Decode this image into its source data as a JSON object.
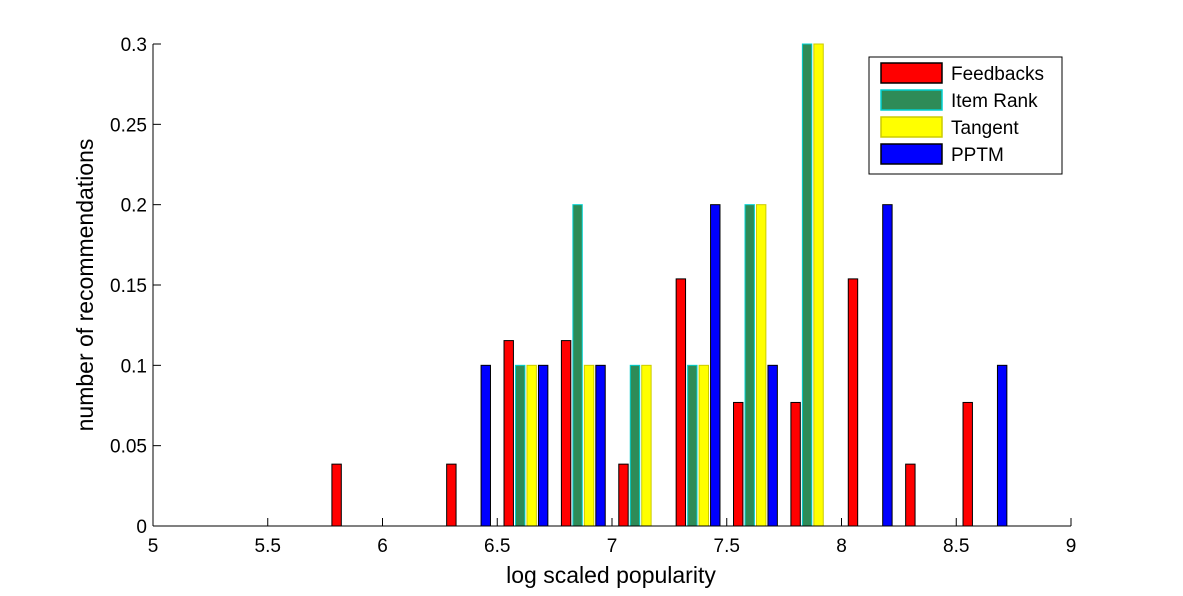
{
  "chart_data": {
    "type": "bar",
    "xlabel": "log scaled popularity",
    "ylabel": "number of recommendations",
    "xlim": [
      5,
      9
    ],
    "ylim": [
      0,
      0.3
    ],
    "xticks": [
      5,
      5.5,
      6,
      6.5,
      7,
      7.5,
      8,
      8.5,
      9
    ],
    "xtick_labels": [
      "5",
      "5.5",
      "6",
      "6.5",
      "7",
      "7.5",
      "8",
      "8.5",
      "9"
    ],
    "yticks": [
      0,
      0.05,
      0.1,
      0.15,
      0.2,
      0.25,
      0.3
    ],
    "ytick_labels": [
      "0",
      "0.05",
      "0.1",
      "0.15",
      "0.2",
      "0.25",
      "0.3"
    ],
    "grid": false,
    "legend_position": "top-right",
    "x": [
      5.125,
      5.375,
      5.625,
      5.875,
      6.125,
      6.375,
      6.625,
      6.875,
      7.125,
      7.375,
      7.625,
      7.875,
      8.125,
      8.375,
      8.625,
      8.875
    ],
    "series": [
      {
        "name": "Feedbacks",
        "color": "#ff0000",
        "edge": "#000000",
        "values": [
          0,
          0,
          0,
          0.0385,
          0,
          0.0385,
          0.1154,
          0.1154,
          0.0385,
          0.1538,
          0.0769,
          0.0769,
          0.1538,
          0.0385,
          0.0769,
          0
        ]
      },
      {
        "name": "Item Rank",
        "color": "#2e8b57",
        "edge": "#00d0d0",
        "values": [
          0,
          0,
          0,
          0,
          0,
          0,
          0.1,
          0.2,
          0.1,
          0.1,
          0.2,
          0.3,
          0,
          0,
          0,
          0
        ]
      },
      {
        "name": "Tangent",
        "color": "#ffff00",
        "edge": "#cccc00",
        "values": [
          0,
          0,
          0,
          0,
          0,
          0,
          0.1,
          0.1,
          0.1,
          0.1,
          0.2,
          0.3,
          0,
          0,
          0,
          0
        ]
      },
      {
        "name": "PPTM",
        "color": "#0000ff",
        "edge": "#000000",
        "values": [
          0,
          0,
          0,
          0,
          0,
          0.1,
          0.1,
          0.1,
          0,
          0.2,
          0.1,
          0,
          0.2,
          0,
          0.1,
          0
        ]
      }
    ]
  }
}
